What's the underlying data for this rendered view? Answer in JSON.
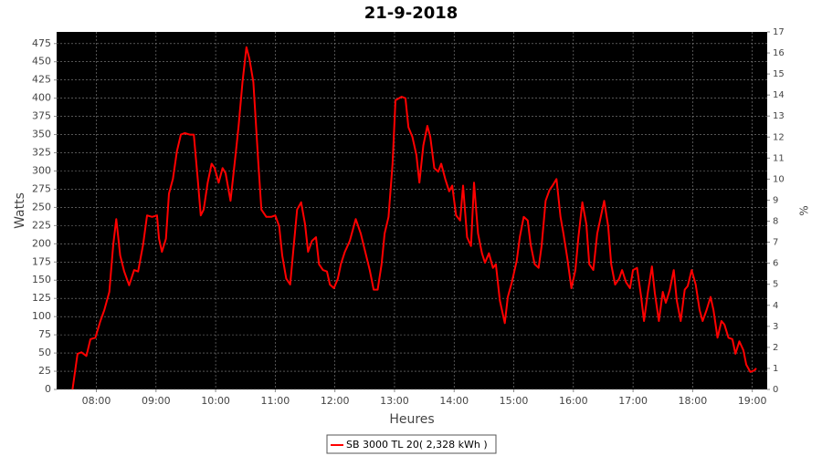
{
  "chart_data": {
    "type": "line",
    "title": "21-9-2018",
    "xlabel": "Heures",
    "ylabel": "Watts",
    "y2label": "%",
    "x": [
      "07:36",
      "07:41",
      "07:45",
      "07:50",
      "07:54",
      "07:59",
      "08:04",
      "08:08",
      "08:13",
      "08:17",
      "08:20",
      "08:24",
      "08:28",
      "08:33",
      "08:38",
      "08:42",
      "08:47",
      "08:51",
      "08:56",
      "09:01",
      "09:03",
      "09:06",
      "09:10",
      "09:13",
      "09:17",
      "09:21",
      "09:25",
      "09:29",
      "09:34",
      "09:38",
      "09:42",
      "09:45",
      "09:48",
      "09:52",
      "09:56",
      "09:59",
      "10:03",
      "10:07",
      "10:10",
      "10:15",
      "10:20",
      "10:23",
      "10:27",
      "10:31",
      "10:34",
      "10:38",
      "10:43",
      "10:46",
      "10:51",
      "10:56",
      "11:00",
      "11:04",
      "11:07",
      "11:11",
      "11:15",
      "11:18",
      "11:22",
      "11:26",
      "11:30",
      "11:33",
      "11:37",
      "11:41",
      "11:44",
      "11:48",
      "11:52",
      "11:55",
      "11:59",
      "12:03",
      "12:06",
      "12:10",
      "12:15",
      "12:21",
      "12:26",
      "12:30",
      "12:35",
      "12:39",
      "12:43",
      "12:47",
      "12:50",
      "12:54",
      "12:58",
      "13:01",
      "13:07",
      "13:11",
      "13:14",
      "13:18",
      "13:22",
      "13:25",
      "13:29",
      "13:33",
      "13:36",
      "13:40",
      "13:44",
      "13:47",
      "13:51",
      "13:55",
      "13:58",
      "14:02",
      "14:06",
      "14:09",
      "14:13",
      "14:17",
      "14:20",
      "14:24",
      "14:28",
      "14:31",
      "14:35",
      "14:39",
      "14:42",
      "14:46",
      "14:51",
      "14:54",
      "14:58",
      "15:03",
      "15:06",
      "15:10",
      "15:14",
      "15:17",
      "15:21",
      "15:25",
      "15:28",
      "15:32",
      "15:36",
      "15:39",
      "15:43",
      "15:47",
      "15:50",
      "15:54",
      "15:58",
      "16:02",
      "16:05",
      "16:09",
      "16:13",
      "16:16",
      "16:20",
      "16:24",
      "16:31",
      "16:35",
      "16:38",
      "16:42",
      "16:46",
      "16:49",
      "16:53",
      "16:57",
      "17:00",
      "17:04",
      "17:08",
      "17:11",
      "17:15",
      "17:19",
      "17:22",
      "17:26",
      "17:30",
      "17:33",
      "17:37",
      "17:41",
      "17:44",
      "17:48",
      "17:52",
      "17:55",
      "17:59",
      "18:03",
      "18:07",
      "18:10",
      "18:14",
      "18:18",
      "18:21",
      "18:25",
      "18:29",
      "18:32",
      "18:36",
      "18:40",
      "18:43",
      "18:47",
      "18:51",
      "18:54",
      "18:58",
      "19:02",
      "19:04"
    ],
    "series": [
      {
        "name": "SB 3000 TL 20( 2,328 kWh )",
        "color": "#ff0000",
        "values": [
          0,
          49,
          51,
          46,
          69,
          71,
          94,
          109,
          134,
          199,
          234,
          184,
          162,
          143,
          164,
          162,
          199,
          239,
          237,
          239,
          207,
          189,
          207,
          269,
          289,
          327,
          350,
          352,
          350,
          350,
          289,
          239,
          247,
          284,
          310,
          304,
          284,
          304,
          297,
          259,
          322,
          360,
          422,
          470,
          454,
          422,
          310,
          247,
          237,
          237,
          239,
          224,
          184,
          152,
          144,
          189,
          247,
          257,
          227,
          189,
          204,
          209,
          172,
          164,
          162,
          144,
          139,
          152,
          172,
          189,
          204,
          234,
          214,
          192,
          164,
          137,
          137,
          172,
          214,
          237,
          310,
          397,
          402,
          400,
          360,
          347,
          322,
          284,
          335,
          362,
          347,
          304,
          299,
          310,
          289,
          272,
          280,
          239,
          232,
          280,
          209,
          197,
          284,
          214,
          187,
          174,
          187,
          167,
          172,
          122,
          91,
          127,
          147,
          177,
          209,
          237,
          232,
          199,
          172,
          167,
          197,
          259,
          274,
          280,
          289,
          237,
          214,
          179,
          139,
          164,
          209,
          257,
          227,
          172,
          164,
          214,
          259,
          224,
          172,
          144,
          152,
          164,
          147,
          139,
          164,
          167,
          129,
          94,
          134,
          169,
          132,
          94,
          134,
          119,
          137,
          164,
          122,
          94,
          137,
          142,
          164,
          144,
          109,
          94,
          109,
          127,
          109,
          71,
          94,
          89,
          71,
          69,
          49,
          66,
          54,
          34,
          24,
          26,
          29
        ]
      }
    ],
    "xlim": [
      "07:20",
      "19:15"
    ],
    "xticks": [
      "08:00",
      "09:00",
      "10:00",
      "11:00",
      "12:00",
      "13:00",
      "14:00",
      "15:00",
      "16:00",
      "17:00",
      "18:00",
      "19:00"
    ],
    "ylim": [
      0,
      491
    ],
    "yticks": [
      0,
      25,
      50,
      75,
      100,
      125,
      150,
      175,
      200,
      225,
      250,
      275,
      300,
      325,
      350,
      375,
      400,
      425,
      450,
      475
    ],
    "y2lim": [
      0,
      17
    ],
    "y2ticks": [
      0,
      1,
      2,
      3,
      4,
      5,
      6,
      7,
      8,
      9,
      10,
      11,
      12,
      13,
      14,
      15,
      16,
      17
    ],
    "grid": true
  }
}
